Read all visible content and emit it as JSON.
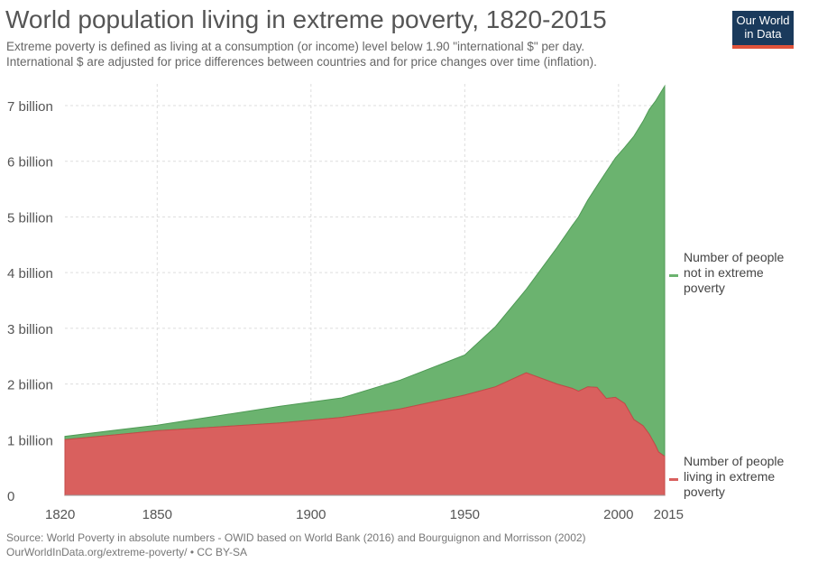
{
  "title": "World population living in extreme poverty, 1820-2015",
  "subtitle_line1": "Extreme poverty is defined as living at a consumption (or income) level below 1.90 \"international $\" per day.",
  "subtitle_line2": "International $ are adjusted for price differences between countries and for price changes over time (inflation).",
  "logo_line1": "Our World",
  "logo_line2": "in Data",
  "footer_line1": "Source: World Poverty in absolute numbers - OWID based on World Bank (2016) and Bourguignon and Morrisson (2002)",
  "footer_line2": "OurWorldInData.org/extreme-poverty/ • CC BY-SA",
  "colors": {
    "not_poor": "#6bb36f",
    "poor": "#d9605e",
    "logo_bg": "#1a3a5c",
    "logo_bar": "#e0533a"
  },
  "chart_data": {
    "type": "area",
    "stacked": true,
    "xlim": [
      1820,
      2015
    ],
    "ylim": [
      0,
      7000000000
    ],
    "xticks": [
      {
        "value": 1820,
        "label": "1820"
      },
      {
        "value": 1850,
        "label": "1850"
      },
      {
        "value": 1900,
        "label": "1900"
      },
      {
        "value": 1950,
        "label": "1950"
      },
      {
        "value": 2000,
        "label": "2000"
      },
      {
        "value": 2015,
        "label": "2015"
      }
    ],
    "yticks": [
      {
        "value": 0,
        "label": "0"
      },
      {
        "value": 1000000000,
        "label": "1 billion"
      },
      {
        "value": 2000000000,
        "label": "2 billion"
      },
      {
        "value": 3000000000,
        "label": "3 billion"
      },
      {
        "value": 4000000000,
        "label": "4 billion"
      },
      {
        "value": 5000000000,
        "label": "5 billion"
      },
      {
        "value": 6000000000,
        "label": "6 billion"
      },
      {
        "value": 7000000000,
        "label": "7 billion"
      }
    ],
    "grid": true,
    "legend": "right",
    "series": [
      {
        "key": "poor",
        "name": "Number of people living in extreme poverty",
        "label_lines": [
          "Number of people",
          "living in extreme",
          "poverty"
        ],
        "x": [
          1820,
          1850,
          1870,
          1890,
          1910,
          1929,
          1950,
          1960,
          1970,
          1980,
          1985,
          1987,
          1990,
          1993,
          1996,
          1999,
          2002,
          2005,
          2008,
          2010,
          2012,
          2013,
          2015
        ],
        "y": [
          1000000000,
          1160000000,
          1230000000,
          1300000000,
          1400000000,
          1550000000,
          1800000000,
          1950000000,
          2200000000,
          2000000000,
          1920000000,
          1870000000,
          1950000000,
          1940000000,
          1740000000,
          1760000000,
          1650000000,
          1360000000,
          1250000000,
          1100000000,
          900000000,
          780000000,
          700000000
        ]
      },
      {
        "key": "not_poor",
        "name": "Number of people not in extreme poverty",
        "label_lines": [
          "Number of people",
          "not in extreme",
          "poverty"
        ],
        "x": [
          1820,
          1850,
          1870,
          1890,
          1910,
          1929,
          1950,
          1960,
          1970,
          1980,
          1985,
          1987,
          1990,
          1993,
          1996,
          1999,
          2002,
          2005,
          2008,
          2010,
          2012,
          2013,
          2015
        ],
        "y": [
          60000000,
          100000000,
          200000000,
          300000000,
          350000000,
          520000000,
          720000000,
          1080000000,
          1500000000,
          2450000000,
          2930000000,
          3130000000,
          3350000000,
          3620000000,
          4070000000,
          4300000000,
          4600000000,
          5090000000,
          5470000000,
          5830000000,
          6180000000,
          6390000000,
          6650000000
        ]
      }
    ]
  }
}
